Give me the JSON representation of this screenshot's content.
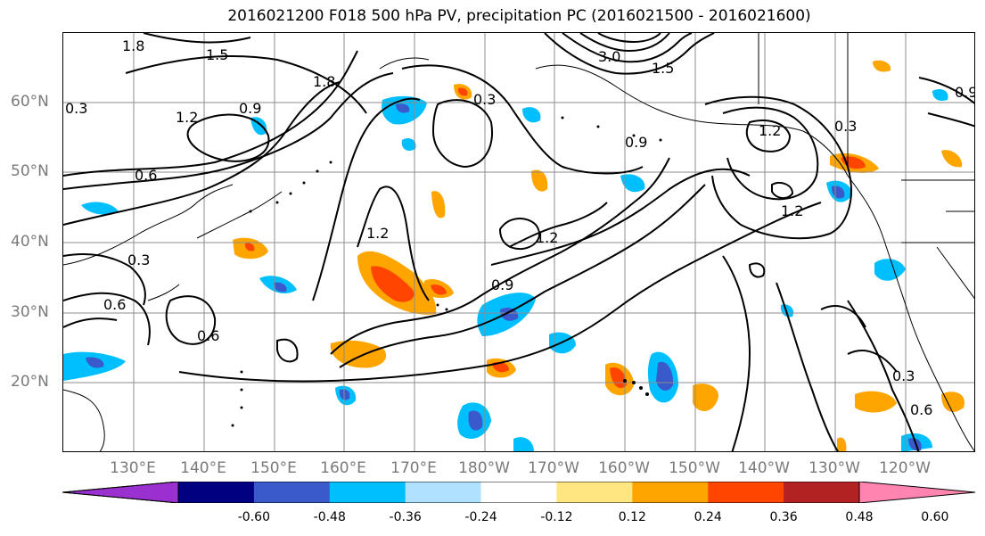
{
  "title": "2016021200 F018 500 hPa PV, precipitation PC (2016021500 - 2016021600)",
  "lat_labels": [
    "60°N",
    "50°N",
    "40°N",
    "30°N",
    "20°N"
  ],
  "lon_labels": [
    "130°E",
    "140°E",
    "150°E",
    "160°E",
    "170°E",
    "180°W",
    "170°W",
    "160°W",
    "150°W",
    "140°W",
    "130°W",
    "120°W"
  ],
  "colorbar": {
    "colors": [
      "#9b30d0",
      "#000080",
      "#3a5acb",
      "#00bfff",
      "#b0e2ff",
      "#ffffff",
      "#ffe680",
      "#ffa500",
      "#ff4500",
      "#b22222",
      "#ff85b0"
    ],
    "tick_labels": [
      "-0.60",
      "-0.48",
      "-0.36",
      "-0.24",
      "-0.12",
      "0.12",
      "0.24",
      "0.36",
      "0.48",
      "0.60"
    ]
  },
  "contour_labels": [
    "1.8",
    "1.5",
    "1.2",
    "0.9",
    "0.6",
    "0.3",
    "3.0",
    "1.5",
    "1.8",
    "0.9",
    "0.6",
    "1.2",
    "1.2",
    "0.9",
    "1.2",
    "0.3",
    "0.6",
    "0.3",
    "1.2",
    "0.3",
    "0.9",
    "0.6",
    "0.3"
  ]
}
